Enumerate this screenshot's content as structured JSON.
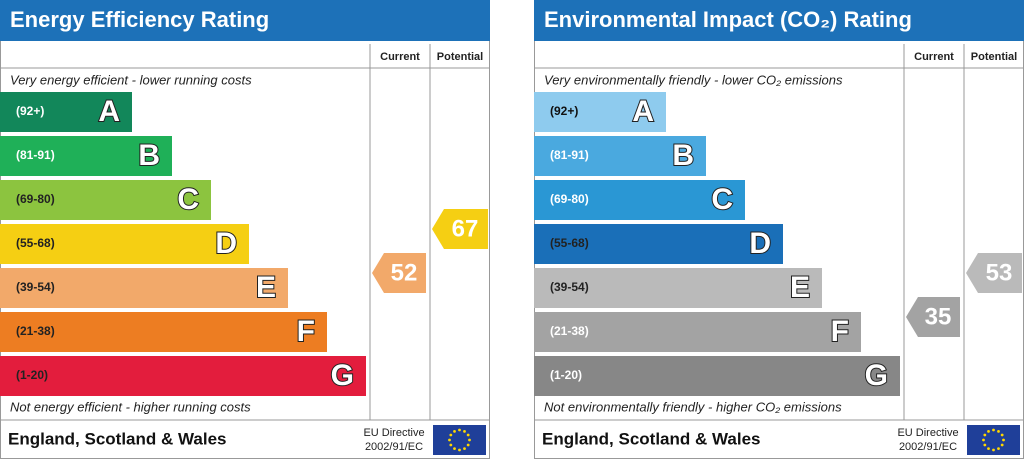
{
  "panels": [
    {
      "title": "Energy Efficiency Rating",
      "columns": [
        "Current",
        "Potential"
      ],
      "top_note": "Very energy efficient - lower running costs",
      "bottom_note": "Not energy efficient - higher running costs",
      "bands": [
        {
          "range": "(92+)",
          "letter": "A"
        },
        {
          "range": "(81-91)",
          "letter": "B"
        },
        {
          "range": "(69-80)",
          "letter": "C"
        },
        {
          "range": "(55-68)",
          "letter": "D"
        },
        {
          "range": "(39-54)",
          "letter": "E"
        },
        {
          "range": "(21-38)",
          "letter": "F"
        },
        {
          "range": "(1-20)",
          "letter": "G"
        }
      ],
      "current": 52,
      "potential": 67,
      "footer": "England, Scotland & Wales",
      "directive": [
        "EU Directive",
        "2002/91/EC"
      ]
    },
    {
      "title": "Environmental Impact (CO₂) Rating",
      "columns": [
        "Current",
        "Potential"
      ],
      "top_note": "Very environmentally friendly - lower CO₂ emissions",
      "bottom_note": "Not environmentally friendly - higher CO₂ emissions",
      "bands": [
        {
          "range": "(92+)",
          "letter": "A"
        },
        {
          "range": "(81-91)",
          "letter": "B"
        },
        {
          "range": "(69-80)",
          "letter": "C"
        },
        {
          "range": "(55-68)",
          "letter": "D"
        },
        {
          "range": "(39-54)",
          "letter": "E"
        },
        {
          "range": "(21-38)",
          "letter": "F"
        },
        {
          "range": "(1-20)",
          "letter": "G"
        }
      ],
      "current": 35,
      "potential": 53,
      "footer": "England, Scotland & Wales",
      "directive": [
        "EU Directive",
        "2002/91/EC"
      ]
    }
  ]
}
